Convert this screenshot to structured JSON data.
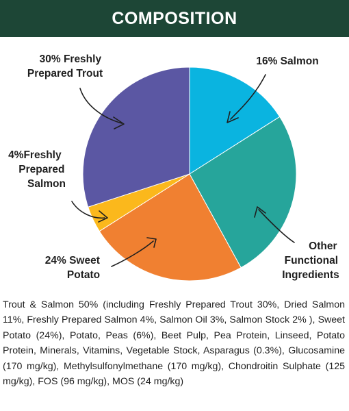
{
  "header": {
    "title": "COMPOSITION"
  },
  "chart_data": {
    "type": "pie",
    "categories": [
      "16% Salmon",
      "Other Functional Ingredients",
      "24% Sweet Potato",
      "4%Freshly Prepared Salmon",
      "30% Freshly Prepared Trout"
    ],
    "values": [
      16,
      26,
      24,
      4,
      30
    ],
    "colors": [
      "#0ab4e0",
      "#26a59b",
      "#f08031",
      "#fbb81c",
      "#5b57a3"
    ],
    "start": "12 o'clock, clockwise"
  },
  "labels": {
    "salmon": [
      "16% Salmon"
    ],
    "other": [
      "Other",
      "Functional",
      "Ingredients"
    ],
    "sweet_potato": [
      "24% Sweet",
      "Potato"
    ],
    "fresh_salmon": [
      "4%Freshly",
      "Prepared",
      "Salmon"
    ],
    "trout": [
      "30% Freshly",
      "Prepared Trout"
    ]
  },
  "composition_text": "Trout & Salmon 50% (including Freshly Prepared Trout 30%, Dried Salmon 11%, Freshly Prepared Salmon 4%, Salmon Oil 3%, Salmon Stock 2% ), Sweet Potato (24%), Potato, Peas (6%), Beet Pulp, Pea Protein, Linseed, Potato Protein, Minerals, Vitamins, Vegetable Stock, Asparagus (0.3%), Glucosamine (170 mg/kg), Methylsulfonylmethane (170 mg/kg), Chondroitin Sulphate (125 mg/kg), FOS (96 mg/kg), MOS (24 mg/kg)"
}
